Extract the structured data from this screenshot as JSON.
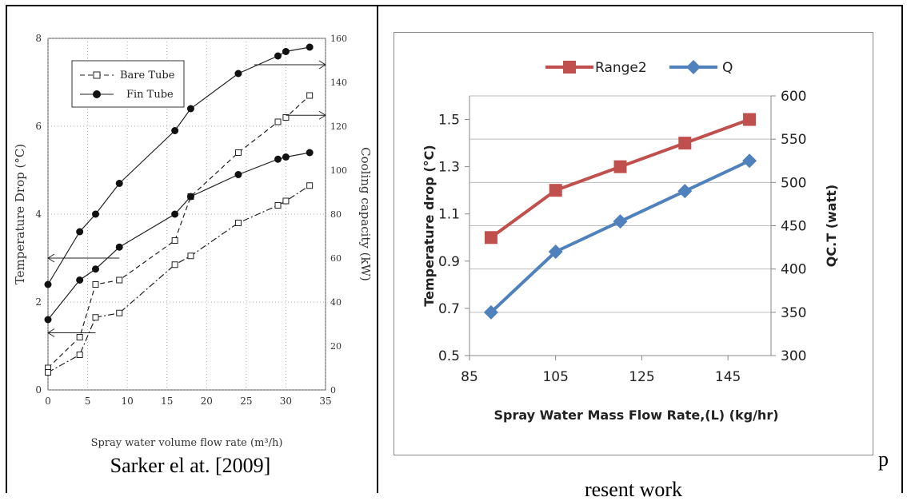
{
  "chart_data": [
    {
      "type": "line",
      "title": "",
      "xlabel": "Spray water volume flow rate (m³/h)",
      "ylabel": "Temperature Drop (°C)",
      "y2label": "Cooling capacity (kW)",
      "xlim": [
        0,
        35
      ],
      "ylim": [
        0,
        8
      ],
      "y2lim": [
        0,
        160
      ],
      "xticks": [
        "0",
        "5",
        "10",
        "15",
        "20",
        "25",
        "30",
        "35"
      ],
      "yticks": [
        "0",
        "2",
        "4",
        "6",
        "8"
      ],
      "y2ticks": [
        "0",
        "20",
        "40",
        "60",
        "80",
        "100",
        "120",
        "140",
        "160"
      ],
      "legend_position": "top-left",
      "legend": [
        "Bare Tube",
        "Fin Tube"
      ],
      "series": [
        {
          "name": "Bare Tube",
          "axis": "left",
          "marker": "square",
          "dash": "dashed",
          "x": [
            0,
            4,
            6,
            9,
            16,
            18,
            24,
            29,
            30,
            33
          ],
          "y": [
            0.5,
            1.2,
            2.4,
            2.5,
            3.4,
            4.4,
            5.4,
            6.1,
            6.2,
            6.7
          ]
        },
        {
          "name": "Fin Tube",
          "axis": "left",
          "marker": "circle",
          "dash": "solid",
          "x": [
            0,
            4,
            6,
            9,
            16,
            18,
            24,
            29,
            30,
            33
          ],
          "y": [
            2.4,
            3.6,
            4.0,
            4.7,
            5.9,
            6.4,
            7.2,
            7.6,
            7.7,
            7.8
          ]
        },
        {
          "name": "Bare Tube",
          "axis": "right",
          "marker": "square",
          "dash": "dashdot",
          "x": [
            0,
            4,
            6,
            9,
            16,
            18,
            24,
            29,
            30,
            33
          ],
          "y": [
            8,
            16,
            33,
            35,
            57,
            61,
            76,
            84,
            86,
            93
          ]
        },
        {
          "name": "Fin Tube",
          "axis": "right",
          "marker": "circle",
          "dash": "solid",
          "x": [
            0,
            4,
            6,
            9,
            16,
            18,
            24,
            29,
            30,
            33
          ],
          "y": [
            32,
            50,
            55,
            65,
            80,
            88,
            98,
            105,
            106,
            108
          ]
        }
      ]
    },
    {
      "type": "line",
      "title": "",
      "xlabel": "Spray Water Mass Flow Rate,(L)   (kg/hr)",
      "ylabel": "Temperature drop  (°C)",
      "y2label": "QC.T (watt)",
      "xlim": [
        85,
        155
      ],
      "ylim": [
        0.5,
        1.6
      ],
      "y2lim": [
        300,
        600
      ],
      "xticks": [
        "85",
        "105",
        "125",
        "145"
      ],
      "yticks": [
        "0.5",
        "0.7",
        "0.9",
        "1.1",
        "1.3",
        "1.5"
      ],
      "y2ticks": [
        "300",
        "350",
        "400",
        "450",
        "500",
        "550",
        "600"
      ],
      "grid": true,
      "legend_position": "top",
      "legend": [
        "Range2",
        "Q"
      ],
      "series": [
        {
          "name": "Range2",
          "axis": "left",
          "color": "#C0504D",
          "marker": "square",
          "x": [
            90,
            105,
            120,
            135,
            150
          ],
          "y": [
            1.0,
            1.2,
            1.3,
            1.4,
            1.5
          ]
        },
        {
          "name": "Q",
          "axis": "right",
          "color": "#4F81BD",
          "marker": "diamond",
          "x": [
            90,
            105,
            120,
            135,
            150
          ],
          "y": [
            350,
            420,
            455,
            490,
            525
          ]
        }
      ]
    }
  ],
  "captions": {
    "left": "Sarker el at. [2009]",
    "right_p": "p",
    "right": "resent work"
  }
}
